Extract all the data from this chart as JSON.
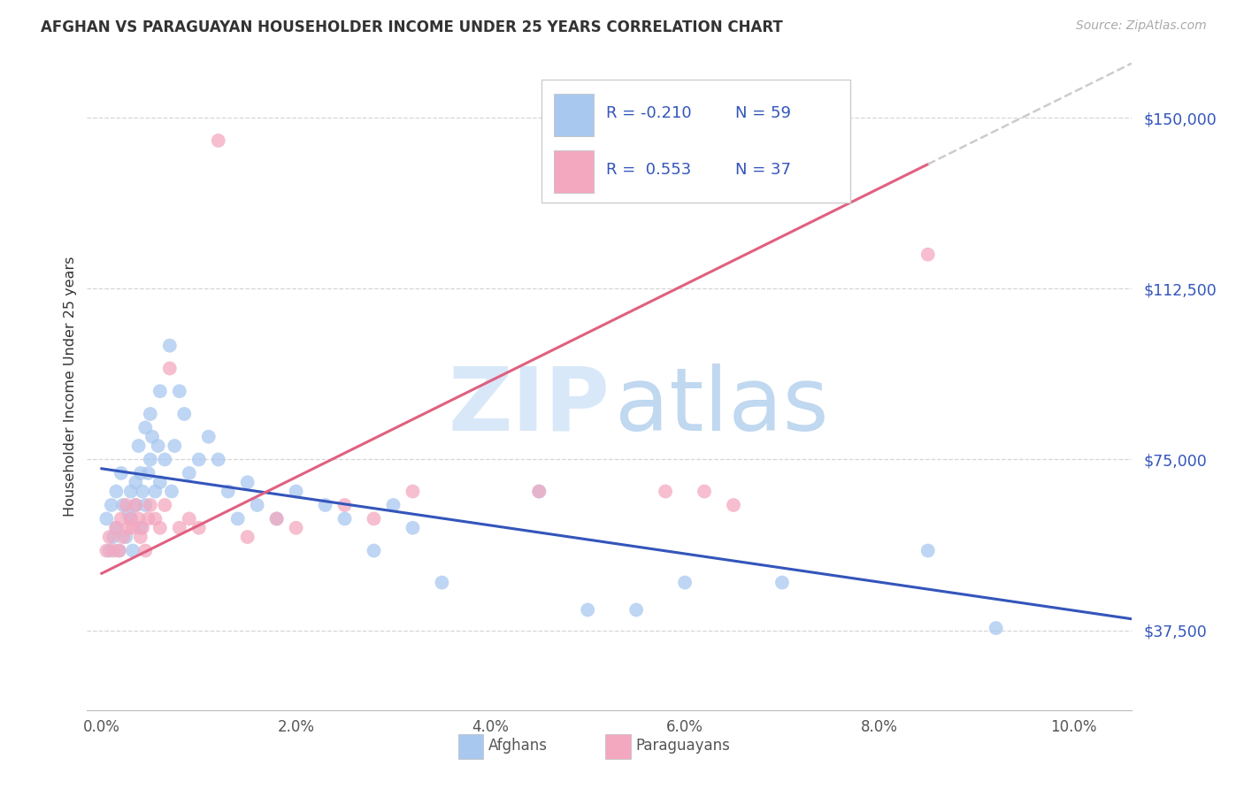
{
  "title": "AFGHAN VS PARAGUAYAN HOUSEHOLDER INCOME UNDER 25 YEARS CORRELATION CHART",
  "source": "Source: ZipAtlas.com",
  "ylabel": "Householder Income Under 25 years",
  "ytick_labels": [
    "$37,500",
    "$75,000",
    "$112,500",
    "$150,000"
  ],
  "ytick_vals": [
    37500,
    75000,
    112500,
    150000
  ],
  "ylim": [
    20000,
    162000
  ],
  "xlim": [
    -0.15,
    10.6
  ],
  "xtick_vals": [
    0.0,
    2.0,
    4.0,
    6.0,
    8.0,
    10.0
  ],
  "xtick_labels": [
    "0.0%",
    "2.0%",
    "4.0%",
    "6.0%",
    "8.0%",
    "10.0%"
  ],
  "afghan_color": "#A8C8F0",
  "paraguayan_color": "#F4A8C0",
  "afghan_line_color": "#3355BB",
  "paraguayan_line_color": "#E06080",
  "legend_text_color": "#3355BB",
  "legend_blue_R": "-0.210",
  "legend_blue_N": "59",
  "legend_pink_R": "0.553",
  "legend_pink_N": "37",
  "background_color": "#ffffff",
  "afghans_x": [
    0.05,
    0.08,
    0.1,
    0.12,
    0.15,
    0.15,
    0.18,
    0.2,
    0.22,
    0.25,
    0.28,
    0.3,
    0.3,
    0.32,
    0.35,
    0.35,
    0.38,
    0.4,
    0.4,
    0.42,
    0.45,
    0.45,
    0.48,
    0.5,
    0.5,
    0.52,
    0.55,
    0.58,
    0.6,
    0.6,
    0.65,
    0.7,
    0.72,
    0.75,
    0.8,
    0.85,
    0.9,
    1.0,
    1.1,
    1.2,
    1.3,
    1.4,
    1.5,
    1.6,
    1.8,
    2.0,
    2.3,
    2.5,
    2.8,
    3.0,
    3.2,
    3.5,
    4.5,
    5.0,
    5.5,
    6.0,
    7.0,
    8.5,
    9.2
  ],
  "afghans_y": [
    62000,
    55000,
    65000,
    58000,
    60000,
    68000,
    55000,
    72000,
    65000,
    58000,
    63000,
    62000,
    68000,
    55000,
    70000,
    65000,
    78000,
    72000,
    60000,
    68000,
    82000,
    65000,
    72000,
    75000,
    85000,
    80000,
    68000,
    78000,
    90000,
    70000,
    75000,
    100000,
    68000,
    78000,
    90000,
    85000,
    72000,
    75000,
    80000,
    75000,
    68000,
    62000,
    70000,
    65000,
    62000,
    68000,
    65000,
    62000,
    55000,
    65000,
    60000,
    48000,
    68000,
    42000,
    42000,
    48000,
    48000,
    55000,
    38000
  ],
  "paraguayans_x": [
    0.05,
    0.08,
    0.12,
    0.15,
    0.18,
    0.2,
    0.22,
    0.25,
    0.28,
    0.3,
    0.32,
    0.35,
    0.38,
    0.4,
    0.42,
    0.45,
    0.48,
    0.5,
    0.55,
    0.6,
    0.65,
    0.7,
    0.8,
    0.9,
    1.0,
    1.2,
    1.5,
    1.8,
    2.0,
    2.5,
    2.8,
    3.2,
    4.5,
    5.8,
    6.2,
    6.5,
    8.5
  ],
  "paraguayans_y": [
    55000,
    58000,
    55000,
    60000,
    55000,
    62000,
    58000,
    65000,
    60000,
    62000,
    60000,
    65000,
    62000,
    58000,
    60000,
    55000,
    62000,
    65000,
    62000,
    60000,
    65000,
    95000,
    60000,
    62000,
    60000,
    145000,
    58000,
    62000,
    60000,
    65000,
    62000,
    68000,
    68000,
    68000,
    68000,
    65000,
    120000
  ],
  "afghan_trend_x0": 0.0,
  "afghan_trend_x1": 10.6,
  "afghan_trend_y0": 73000,
  "afghan_trend_y1": 40000,
  "para_trend_x0": 0.0,
  "para_trend_x1": 10.6,
  "para_trend_y0": 50000,
  "para_trend_y1": 162000,
  "para_dash_start_x": 8.5,
  "watermark_zip_color": "#D8E8F8",
  "watermark_atlas_color": "#C0D8F0"
}
